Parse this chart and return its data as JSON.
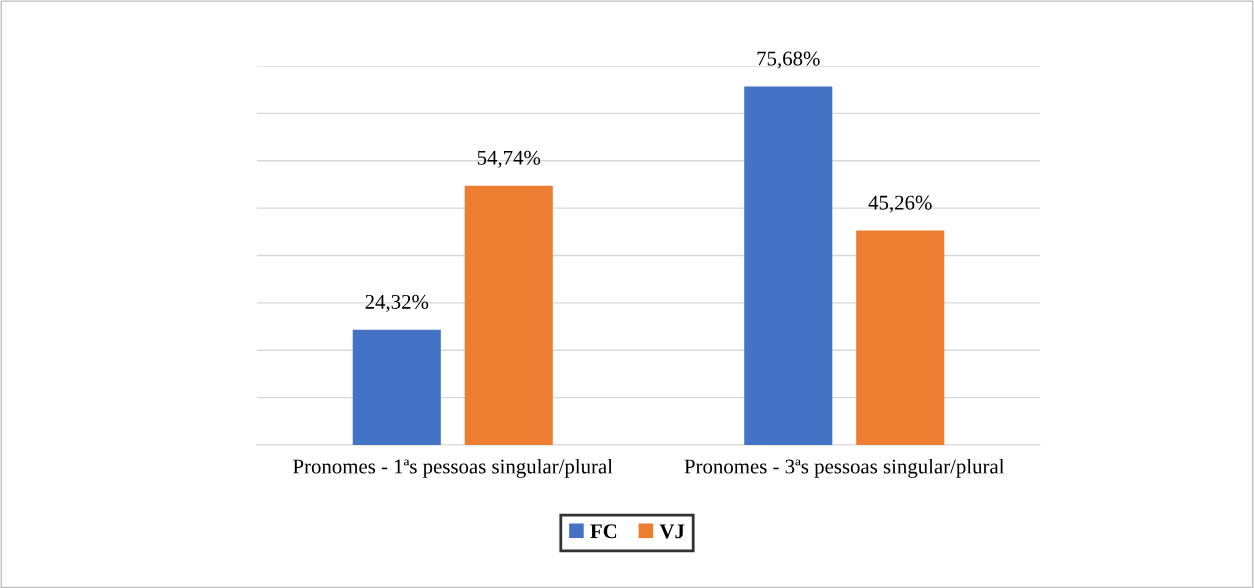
{
  "chart_data": {
    "type": "bar",
    "categories": [
      "Pronomes - 1ªs pessoas singular/plural",
      "Pronomes - 3ªs pessoas singular/plural"
    ],
    "series": [
      {
        "name": "FC",
        "color": "#4472c4",
        "values": [
          24.32,
          75.68
        ],
        "value_labels": [
          "24,32%",
          "75,68%"
        ]
      },
      {
        "name": "VJ",
        "color": "#ed7d31",
        "values": [
          54.74,
          45.26
        ],
        "value_labels": [
          "54,74%",
          "45,26%"
        ]
      }
    ],
    "ylim": [
      0,
      80
    ],
    "yticks": [
      {
        "value": 0,
        "label": null
      },
      {
        "value": 10,
        "label": null
      },
      {
        "value": 20,
        "label": null
      },
      {
        "value": 30,
        "label": null
      },
      {
        "value": 40,
        "label": null
      },
      {
        "value": 50,
        "label": null
      },
      {
        "value": 60,
        "label": null
      },
      {
        "value": 70,
        "label": null
      },
      {
        "value": 80,
        "label": null
      }
    ],
    "tick_labels": "x",
    "grid": "y",
    "legend": "bottom"
  }
}
